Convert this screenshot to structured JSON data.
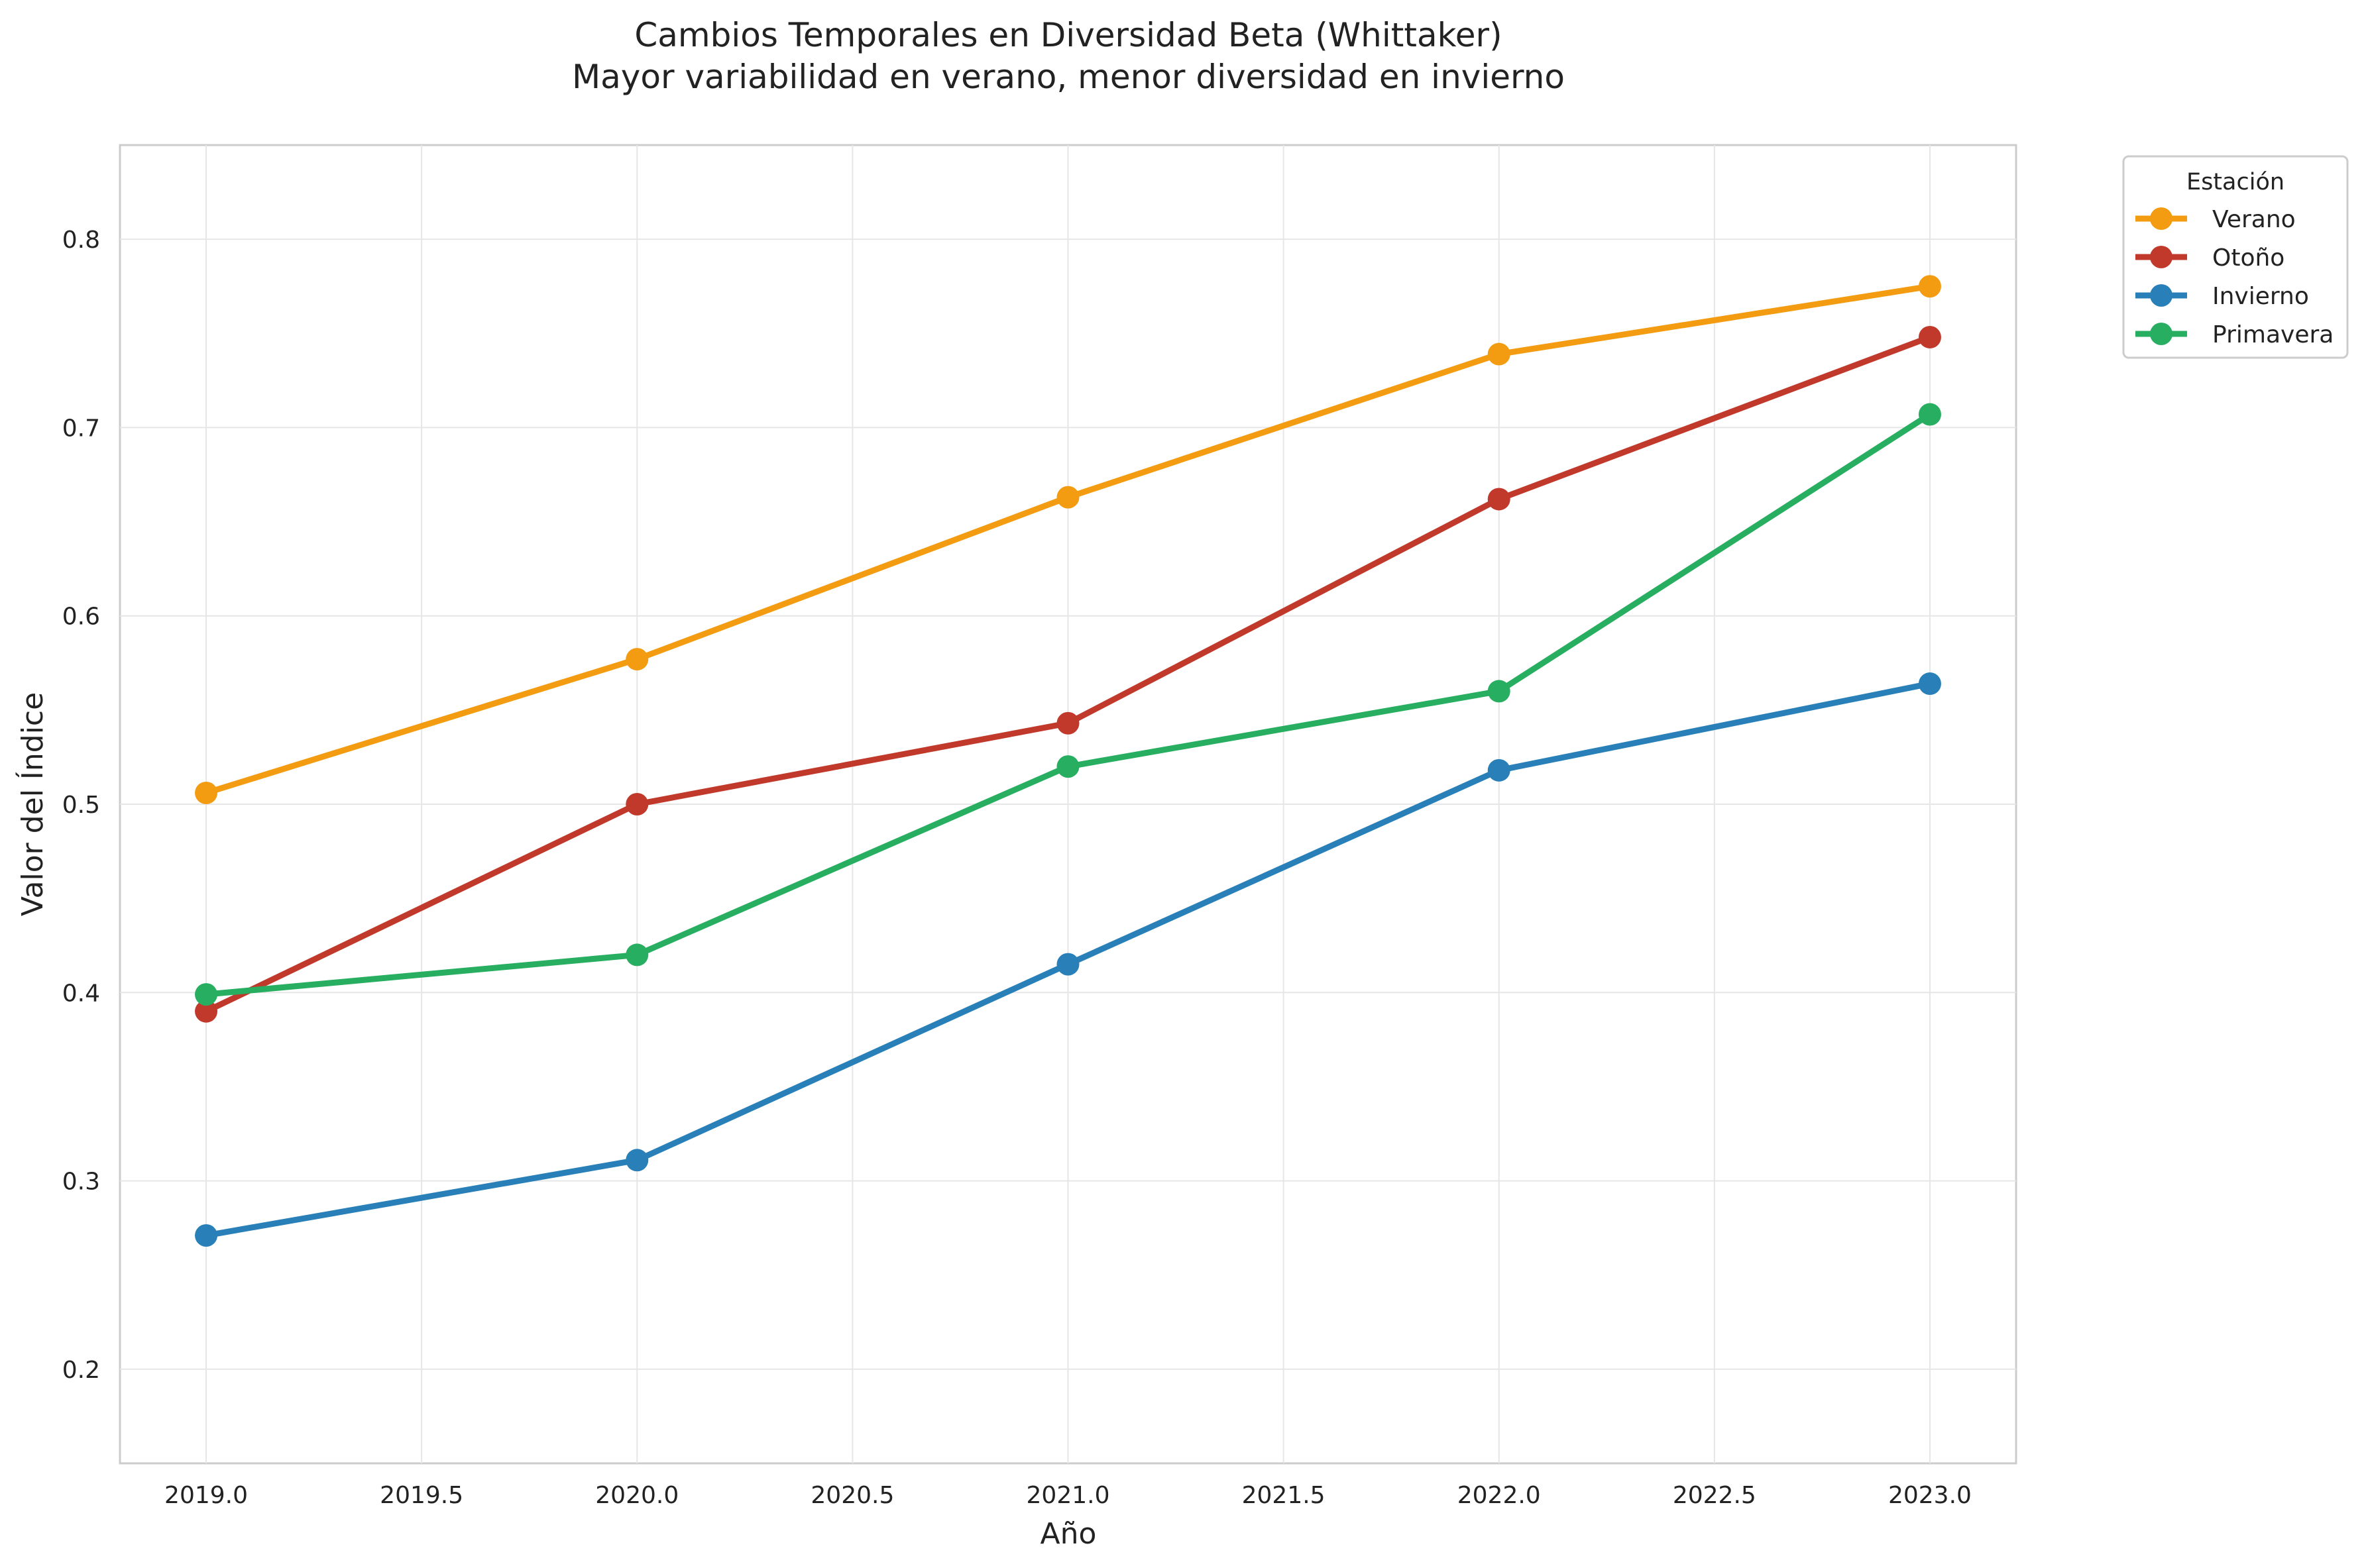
{
  "chart_data": {
    "type": "line",
    "title": "Cambios Temporales en Diversidad Beta (Whittaker)",
    "subtitle": "Mayor variabilidad en verano, menor diversidad en invierno",
    "xlabel": "Año",
    "ylabel": "Valor del Índice",
    "x": [
      2019,
      2020,
      2021,
      2022,
      2023
    ],
    "xlim": [
      2018.8,
      2023.2
    ],
    "ylim": [
      0.15,
      0.85
    ],
    "x_ticks": [
      "2019.0",
      "2019.5",
      "2020.0",
      "2020.5",
      "2021.0",
      "2021.5",
      "2022.0",
      "2022.5",
      "2023.0"
    ],
    "y_ticks": [
      "0.2",
      "0.3",
      "0.4",
      "0.5",
      "0.6",
      "0.7",
      "0.8"
    ],
    "grid": true,
    "legend": {
      "title": "Estación",
      "placement": "outside-top-right"
    },
    "series": [
      {
        "name": "Verano",
        "color": "#f39c12",
        "values": [
          0.506,
          0.577,
          0.663,
          0.739,
          0.775
        ]
      },
      {
        "name": "Otoño",
        "color": "#c0392b",
        "values": [
          0.39,
          0.5,
          0.543,
          0.662,
          0.748
        ]
      },
      {
        "name": "Invierno",
        "color": "#2980b9",
        "values": [
          0.271,
          0.311,
          0.415,
          0.518,
          0.564
        ]
      },
      {
        "name": "Primavera",
        "color": "#27ae60",
        "values": [
          0.399,
          0.42,
          0.52,
          0.56,
          0.707
        ]
      }
    ]
  }
}
